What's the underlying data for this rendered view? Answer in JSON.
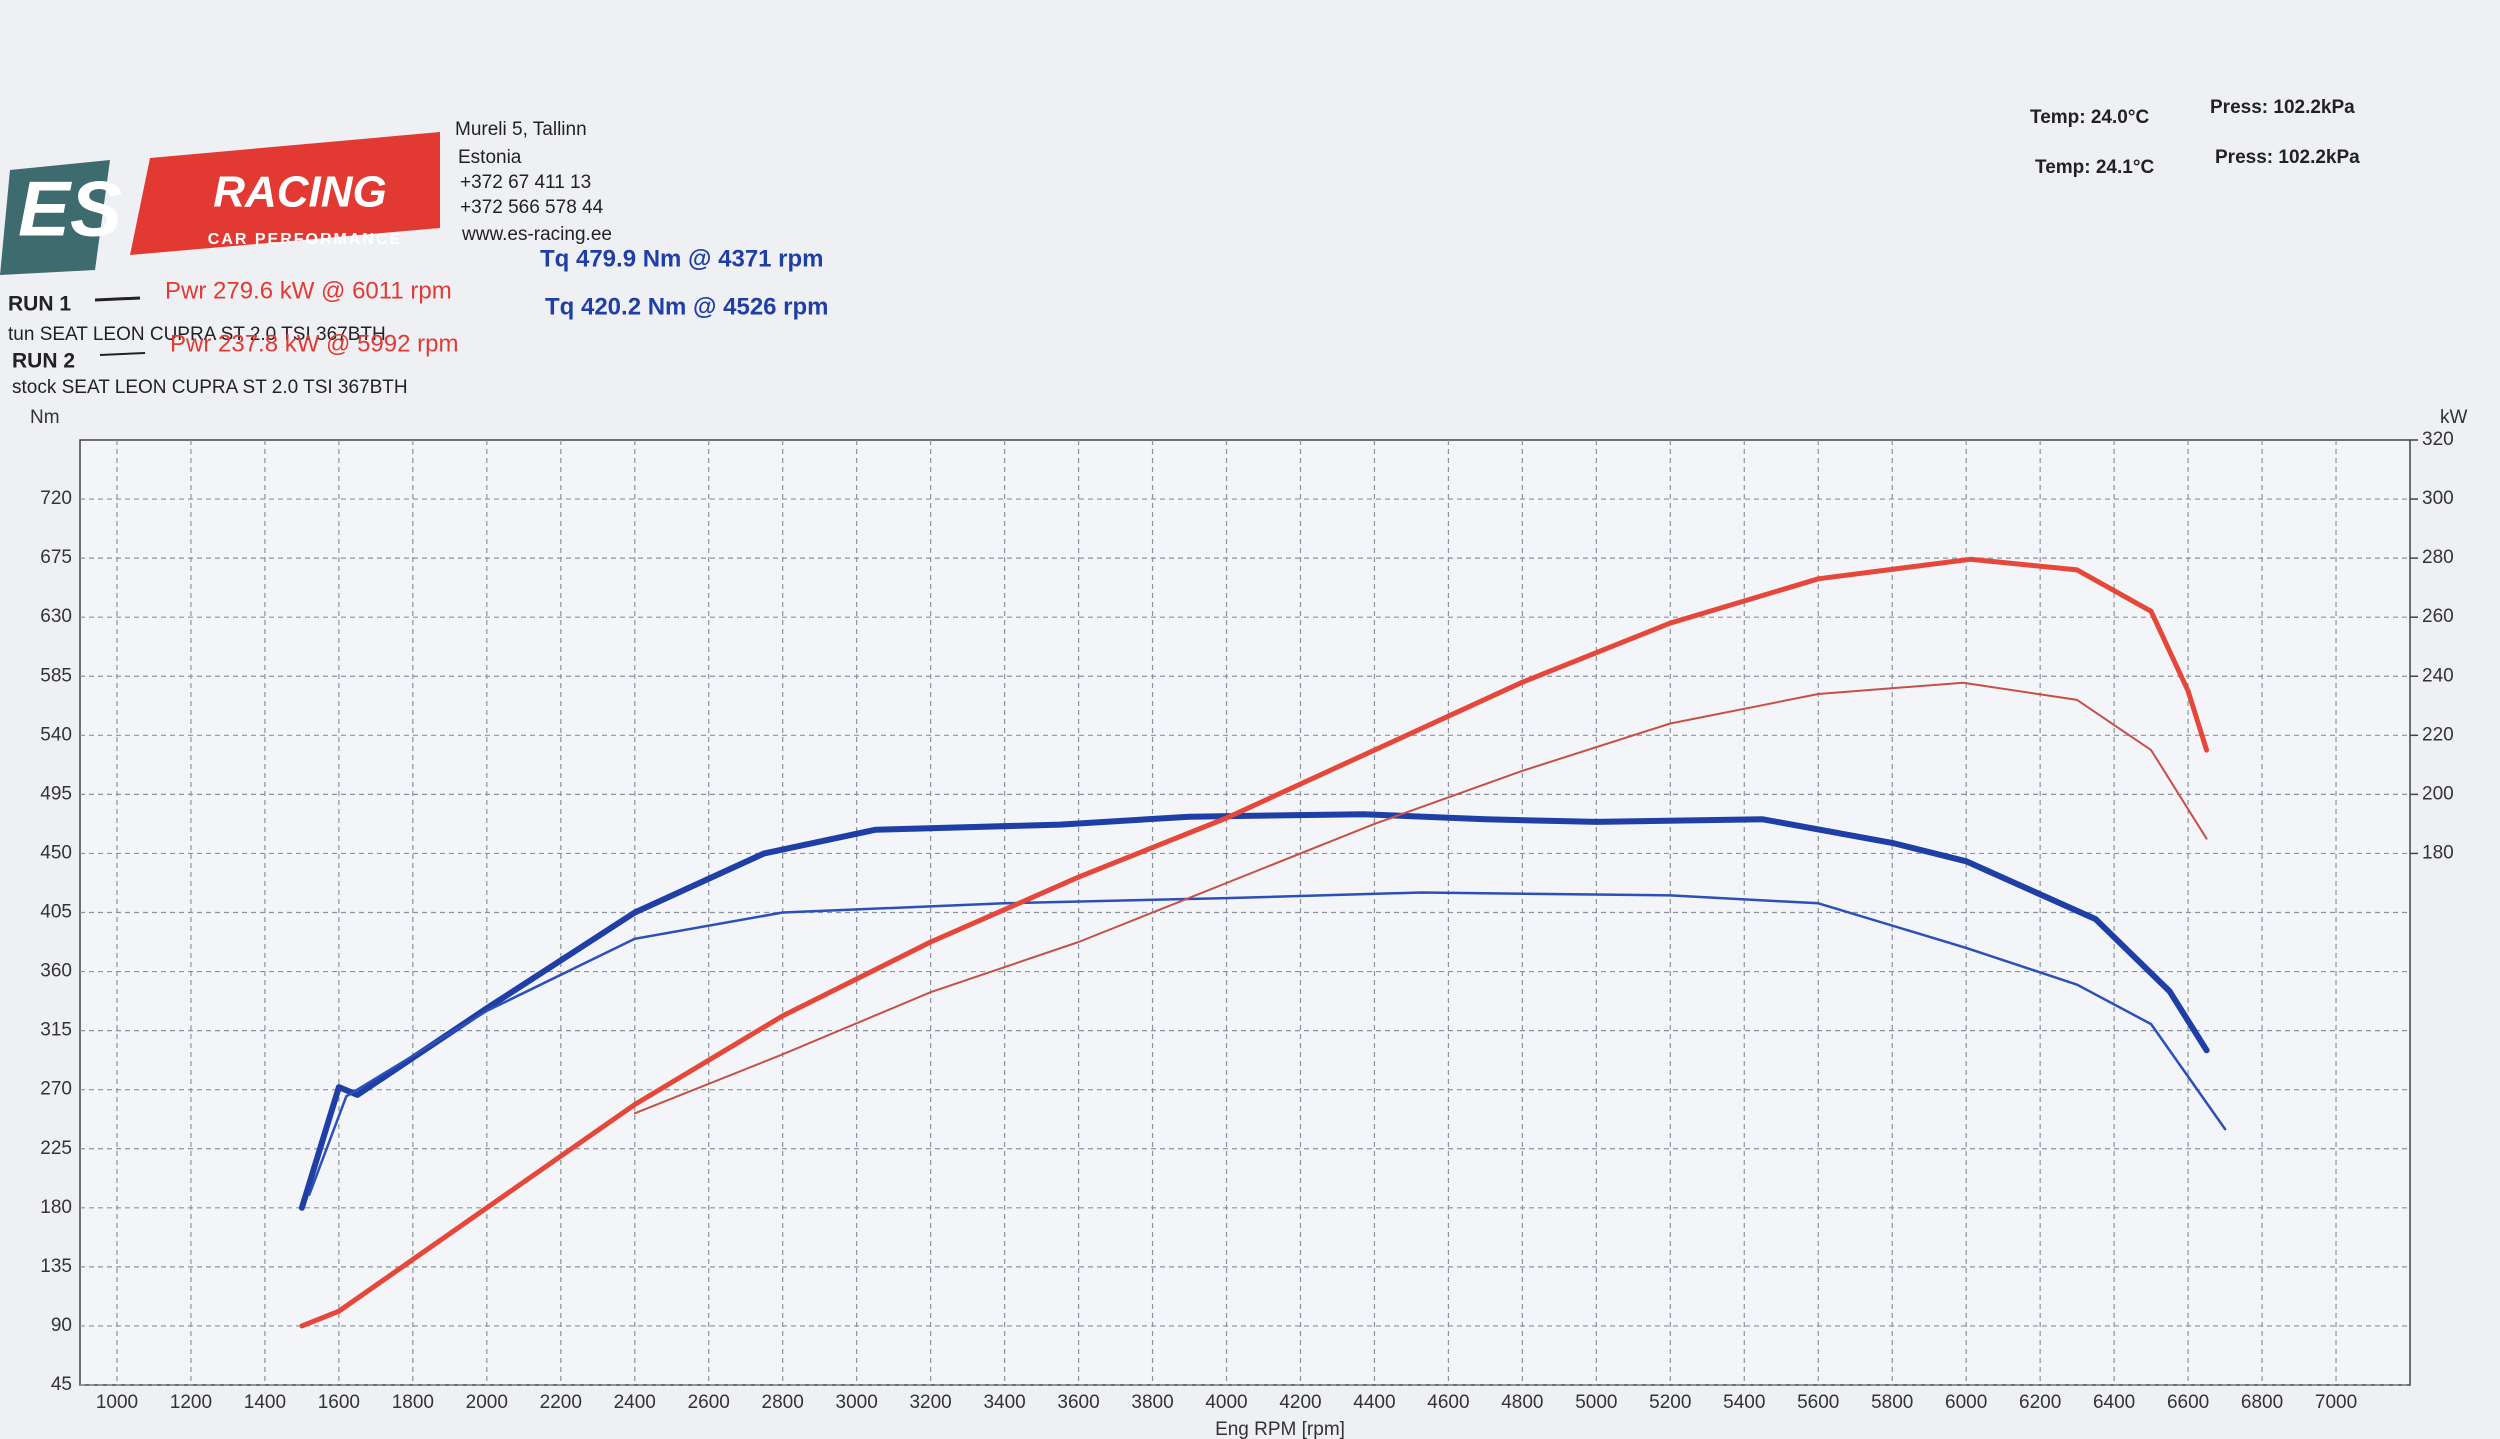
{
  "header": {
    "logo": {
      "mark": "ES",
      "name": "RACING",
      "tagline": "CAR PERFORMANCE"
    },
    "address": [
      "Mureli 5, Tallinn",
      "Estonia",
      "+372 67 411 13",
      "+372 566 578 44",
      "www.es-racing.ee"
    ],
    "conditions": [
      {
        "temp": "Temp: 24.0°C",
        "press": "Press: 102.2kPa"
      },
      {
        "temp": "Temp: 24.1°C",
        "press": "Press: 102.2kPa"
      }
    ],
    "runs": [
      {
        "label": "RUN 1",
        "power": "Pwr 279.6 kW @ 6011 rpm",
        "torque": "Tq 479.9 Nm @ 4371 rpm",
        "vehicle": "tun SEAT LEON CUPRA ST 2.0 TSI 367BTH"
      },
      {
        "label": "RUN 2",
        "power": "Pwr 237.8 kW @ 5992 rpm",
        "torque": "Tq 420.2 Nm @ 4526 rpm",
        "vehicle": "stock SEAT LEON CUPRA ST 2.0 TSI 367BTH"
      }
    ]
  },
  "chart_data": {
    "type": "line",
    "y_label": "Nm",
    "y2_label": "kW",
    "x_label": "Eng RPM [rpm]",
    "grid": true,
    "xlim": [
      900,
      7200
    ],
    "xticks": [
      1000,
      1200,
      1400,
      1600,
      1800,
      2000,
      2200,
      2400,
      2600,
      2800,
      3000,
      3200,
      3400,
      3600,
      3800,
      4000,
      4200,
      4400,
      4600,
      4800,
      5000,
      5200,
      5400,
      5600,
      5800,
      6000,
      6200,
      6400,
      6600,
      6800,
      7000
    ],
    "ylim": [
      45,
      765
    ],
    "yticks": [
      45,
      90,
      135,
      180,
      225,
      270,
      315,
      360,
      405,
      450,
      495,
      540,
      585,
      630,
      675,
      720
    ],
    "y2lim": [
      0,
      320
    ],
    "y2ticks": [
      180,
      200,
      220,
      240,
      260,
      280,
      300,
      320
    ],
    "series": [
      {
        "color": "#1f3ea6",
        "width": 6,
        "axis": "y",
        "x": [
          1500,
          1600,
          1650,
          2000,
          2400,
          2750,
          3050,
          3550,
          3900,
          4371,
          4700,
          5000,
          5450,
          5800,
          6000,
          6350,
          6550,
          6650
        ],
        "values": [
          180,
          272,
          266,
          332,
          405,
          450,
          468,
          472,
          478,
          479.9,
          476,
          474,
          476,
          458,
          444,
          400,
          345,
          300
        ]
      },
      {
        "color": "#2d50b8",
        "width": 2.5,
        "axis": "y",
        "x": [
          1520,
          1620,
          2000,
          2400,
          2800,
          3400,
          4000,
          4526,
          5200,
          5600,
          6000,
          6300,
          6500,
          6700
        ],
        "values": [
          190,
          265,
          330,
          385,
          405,
          412,
          416,
          420.2,
          418,
          412,
          378,
          350,
          320,
          240
        ]
      },
      {
        "color": "#e5483a",
        "width": 5,
        "axis": "y2",
        "x": [
          1500,
          1600,
          2000,
          2400,
          2800,
          3200,
          3600,
          4000,
          4400,
          4800,
          5200,
          5600,
          6011,
          6300,
          6500,
          6600,
          6650
        ],
        "values": [
          20,
          25,
          60,
          95,
          125,
          150,
          172,
          192,
          215,
          238,
          258,
          273,
          279.6,
          276,
          262,
          235,
          215
        ]
      },
      {
        "color": "#c65048",
        "width": 2,
        "axis": "y2",
        "x": [
          2400,
          2800,
          3200,
          3600,
          4000,
          4400,
          4800,
          5200,
          5600,
          5992,
          6300,
          6500,
          6650
        ],
        "values": [
          92,
          112,
          133,
          150,
          170,
          190,
          208,
          224,
          234,
          237.8,
          232,
          215,
          185
        ]
      }
    ]
  }
}
